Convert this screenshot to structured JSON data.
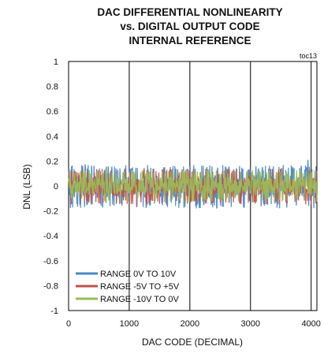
{
  "chart_data": {
    "type": "line",
    "title_lines": [
      "DAC DIFFERENTIAL NONLINEARITY",
      "vs. DIGITAL OUTPUT CODE",
      "INTERNAL REFERENCE"
    ],
    "tag": "toc13",
    "xlabel": "DAC CODE (DECIMAL)",
    "ylabel": "DNL (LSB)",
    "xlim": [
      0,
      4095
    ],
    "ylim": [
      -1,
      1
    ],
    "xticks": [
      "0",
      "1000",
      "2000",
      "3000",
      "4000"
    ],
    "yticks": [
      "1",
      "0.8",
      "0.6",
      "0.4",
      "0.2",
      "0",
      "-0.2",
      "-0.4",
      "-0.6",
      "-0.8",
      "-1"
    ],
    "grid": "vertical",
    "legend_position": "bottom-left",
    "series": [
      {
        "name": "RANGE 0V TO 10V",
        "color": "#4a86c8",
        "band": [
          -0.18,
          0.17
        ],
        "spike": {
          "x": 3950,
          "y": 0.21
        }
      },
      {
        "name": "RANGE -5V TO +5V",
        "color": "#c0504d",
        "band": [
          -0.15,
          0.14
        ],
        "spike": {
          "x": 1120,
          "y": -0.17
        }
      },
      {
        "name": "RANGE -10V TO 0V",
        "color": "#9bbb59",
        "band": [
          -0.13,
          0.13
        ],
        "spike": {
          "x": 620,
          "y": 0.14
        }
      }
    ]
  }
}
